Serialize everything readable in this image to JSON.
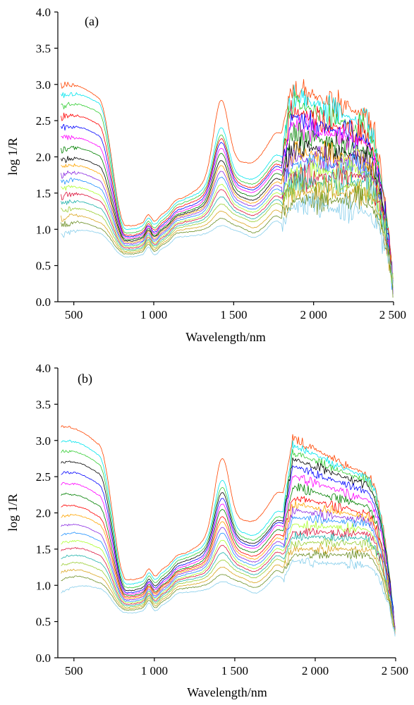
{
  "chart_data": [
    {
      "type": "line",
      "panel_label": "(a)",
      "xlabel": "Wavelength/nm",
      "ylabel": "log 1/R",
      "xlim": [
        400,
        2500
      ],
      "ylim": [
        0,
        4.0
      ],
      "x_ticks": [
        500,
        1000,
        1500,
        2000,
        2500
      ],
      "x_tick_labels": [
        "500",
        "1 000",
        "1 500",
        "2 000",
        "2 500"
      ],
      "y_ticks": [
        0,
        0.5,
        1.0,
        1.5,
        2.0,
        2.5,
        3.0,
        3.5,
        4.0
      ],
      "y_tick_labels": [
        "0.0",
        "0.5",
        "1.0",
        "1.5",
        "2.0",
        "2.5",
        "3.0",
        "3.5",
        "4.0"
      ],
      "grid": false,
      "legend": "none",
      "noise_level": 1.0,
      "series": [
        {
          "color": "#ff4500",
          "values": [
            3.0,
            2.82,
            1.05,
            1.12,
            1.45,
            2.78,
            2.3,
            3.0,
            2.6,
            0.2
          ]
        },
        {
          "color": "#00e5ee",
          "values": [
            2.85,
            2.75,
            1.0,
            1.08,
            1.42,
            2.4,
            1.98,
            2.9,
            2.5,
            0.2
          ]
        },
        {
          "color": "#32cd32",
          "values": [
            2.7,
            2.62,
            0.95,
            1.05,
            1.38,
            2.3,
            1.9,
            2.8,
            2.4,
            0.2
          ]
        },
        {
          "color": "#ff0000",
          "values": [
            2.55,
            2.45,
            0.92,
            1.02,
            1.34,
            2.25,
            1.85,
            2.7,
            2.3,
            0.2
          ]
        },
        {
          "color": "#0000ff",
          "values": [
            2.4,
            2.3,
            0.9,
            1.0,
            1.3,
            2.2,
            1.82,
            2.6,
            2.25,
            0.2
          ]
        },
        {
          "color": "#ff00ff",
          "values": [
            2.25,
            2.15,
            0.88,
            0.98,
            1.27,
            2.12,
            1.78,
            2.5,
            2.2,
            0.2
          ]
        },
        {
          "color": "#008000",
          "values": [
            2.1,
            2.02,
            0.86,
            0.96,
            1.24,
            2.05,
            1.72,
            2.35,
            2.1,
            0.2
          ]
        },
        {
          "color": "#000000",
          "values": [
            1.95,
            1.88,
            0.84,
            0.94,
            1.22,
            1.95,
            1.65,
            2.2,
            2.0,
            0.2
          ]
        },
        {
          "color": "#ffa500",
          "values": [
            1.85,
            1.78,
            0.82,
            0.92,
            1.2,
            1.88,
            1.6,
            2.1,
            1.95,
            0.2
          ]
        },
        {
          "color": "#8a2be2",
          "values": [
            1.75,
            1.68,
            0.8,
            0.9,
            1.18,
            1.8,
            1.55,
            2.0,
            1.9,
            0.2
          ]
        },
        {
          "color": "#1e90ff",
          "values": [
            1.65,
            1.58,
            0.78,
            0.88,
            1.15,
            1.72,
            1.5,
            1.9,
            1.85,
            0.2
          ]
        },
        {
          "color": "#adff2f",
          "values": [
            1.55,
            1.48,
            0.76,
            0.86,
            1.12,
            1.62,
            1.45,
            1.8,
            1.78,
            0.2
          ]
        },
        {
          "color": "#dc143c",
          "values": [
            1.45,
            1.4,
            0.74,
            0.84,
            1.1,
            1.55,
            1.4,
            1.72,
            1.72,
            0.2
          ]
        },
        {
          "color": "#20b2aa",
          "values": [
            1.35,
            1.3,
            0.72,
            0.82,
            1.07,
            1.45,
            1.35,
            1.65,
            1.65,
            0.2
          ]
        },
        {
          "color": "#9acd32",
          "values": [
            1.25,
            1.2,
            0.7,
            0.8,
            1.04,
            1.35,
            1.3,
            1.58,
            1.58,
            0.2
          ]
        },
        {
          "color": "#daa520",
          "values": [
            1.15,
            1.1,
            0.68,
            0.78,
            1.0,
            1.25,
            1.2,
            1.5,
            1.5,
            0.2
          ]
        },
        {
          "color": "#6b8e23",
          "values": [
            1.05,
            1.02,
            0.66,
            0.75,
            0.96,
            1.15,
            1.12,
            1.4,
            1.4,
            0.2
          ]
        },
        {
          "color": "#87ceeb",
          "values": [
            0.9,
            0.95,
            0.62,
            0.72,
            0.9,
            1.05,
            1.05,
            1.32,
            1.25,
            0.2
          ]
        }
      ]
    },
    {
      "type": "line",
      "panel_label": "(b)",
      "xlabel": "Wavelength/nm",
      "ylabel": "log 1/R",
      "xlim": [
        400,
        2500
      ],
      "ylim": [
        0,
        4.0
      ],
      "x_ticks": [
        500,
        1000,
        1500,
        2000,
        2500
      ],
      "x_tick_labels": [
        "500",
        "1 000",
        "1 500",
        "2 000",
        "2 500"
      ],
      "y_ticks": [
        0,
        0.5,
        1.0,
        1.5,
        2.0,
        2.5,
        3.0,
        3.5,
        4.0
      ],
      "y_tick_labels": [
        "0.0",
        "0.5",
        "1.0",
        "1.5",
        "2.0",
        "2.5",
        "3.0",
        "3.5",
        "4.0"
      ],
      "grid": false,
      "legend": "none",
      "noise_level": 0.35,
      "series": [
        {
          "color": "#ff4500",
          "values": [
            3.2,
            2.95,
            1.08,
            1.14,
            1.45,
            2.75,
            2.25,
            3.1,
            2.55,
            0.3
          ]
        },
        {
          "color": "#00e5ee",
          "values": [
            3.0,
            2.8,
            1.02,
            1.1,
            1.42,
            2.45,
            1.98,
            3.0,
            2.5,
            0.3
          ]
        },
        {
          "color": "#32cd32",
          "values": [
            2.85,
            2.68,
            0.97,
            1.06,
            1.38,
            2.35,
            1.9,
            2.9,
            2.45,
            0.3
          ]
        },
        {
          "color": "#000000",
          "values": [
            2.7,
            2.55,
            0.93,
            1.03,
            1.34,
            2.28,
            1.85,
            2.8,
            2.4,
            0.3
          ]
        },
        {
          "color": "#0000ff",
          "values": [
            2.55,
            2.4,
            0.9,
            1.0,
            1.3,
            2.2,
            1.82,
            2.7,
            2.3,
            0.3
          ]
        },
        {
          "color": "#ff00ff",
          "values": [
            2.4,
            2.25,
            0.88,
            0.98,
            1.27,
            2.12,
            1.78,
            2.55,
            2.2,
            0.3
          ]
        },
        {
          "color": "#008000",
          "values": [
            2.25,
            2.1,
            0.86,
            0.96,
            1.24,
            2.05,
            1.72,
            2.4,
            2.1,
            0.3
          ]
        },
        {
          "color": "#ff0000",
          "values": [
            2.1,
            1.95,
            0.84,
            0.94,
            1.22,
            1.95,
            1.65,
            2.25,
            2.0,
            0.3
          ]
        },
        {
          "color": "#ffa500",
          "values": [
            1.95,
            1.85,
            0.82,
            0.92,
            1.2,
            1.88,
            1.6,
            2.15,
            1.95,
            0.3
          ]
        },
        {
          "color": "#8a2be2",
          "values": [
            1.82,
            1.72,
            0.8,
            0.9,
            1.18,
            1.8,
            1.55,
            2.05,
            1.9,
            0.3
          ]
        },
        {
          "color": "#1e90ff",
          "values": [
            1.7,
            1.62,
            0.78,
            0.88,
            1.15,
            1.72,
            1.5,
            1.95,
            1.85,
            0.3
          ]
        },
        {
          "color": "#adff2f",
          "values": [
            1.58,
            1.52,
            0.76,
            0.86,
            1.12,
            1.62,
            1.45,
            1.85,
            1.78,
            0.3
          ]
        },
        {
          "color": "#dc143c",
          "values": [
            1.48,
            1.42,
            0.74,
            0.84,
            1.1,
            1.55,
            1.4,
            1.75,
            1.72,
            0.3
          ]
        },
        {
          "color": "#20b2aa",
          "values": [
            1.38,
            1.32,
            0.72,
            0.82,
            1.07,
            1.45,
            1.35,
            1.68,
            1.65,
            0.3
          ]
        },
        {
          "color": "#9acd32",
          "values": [
            1.28,
            1.22,
            0.7,
            0.8,
            1.04,
            1.35,
            1.3,
            1.6,
            1.58,
            0.3
          ]
        },
        {
          "color": "#daa520",
          "values": [
            1.18,
            1.12,
            0.68,
            0.78,
            1.0,
            1.25,
            1.22,
            1.5,
            1.5,
            0.3
          ]
        },
        {
          "color": "#6b8e23",
          "values": [
            1.08,
            1.04,
            0.66,
            0.75,
            0.96,
            1.15,
            1.14,
            1.42,
            1.42,
            0.3
          ]
        },
        {
          "color": "#87ceeb",
          "values": [
            0.9,
            0.96,
            0.62,
            0.72,
            0.9,
            1.05,
            1.06,
            1.34,
            1.28,
            0.3
          ]
        }
      ]
    }
  ]
}
